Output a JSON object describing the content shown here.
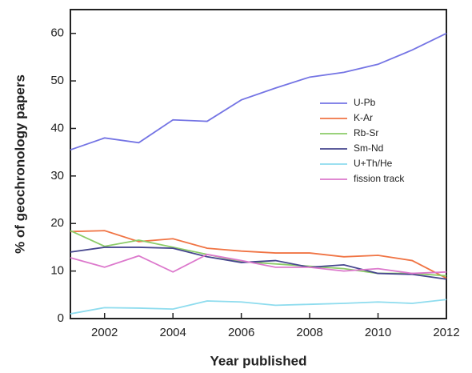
{
  "chart_data": {
    "type": "line",
    "x_label": "Year published",
    "y_label": "% of geochronology papers",
    "x": [
      2001,
      2002,
      2003,
      2004,
      2005,
      2006,
      2007,
      2008,
      2009,
      2010,
      2011,
      2012
    ],
    "xlim": [
      2001,
      2012
    ],
    "xticks": [
      2002,
      2004,
      2006,
      2008,
      2010,
      2012
    ],
    "ylim": [
      0,
      65
    ],
    "yticks": [
      0,
      10,
      20,
      30,
      40,
      50,
      60
    ],
    "grid": false,
    "legend": "upper right",
    "series": [
      {
        "name": "U-Pb",
        "color": "#7474e4",
        "values": [
          35.5,
          38,
          37,
          41.8,
          41.5,
          46,
          48.5,
          50.8,
          51.8,
          53.5,
          56.5,
          60
        ]
      },
      {
        "name": "K-Ar",
        "color": "#f07444",
        "values": [
          18.3,
          18.5,
          16.2,
          16.8,
          14.8,
          14.2,
          13.8,
          13.8,
          13.0,
          13.3,
          12.2,
          8.5
        ]
      },
      {
        "name": "Rb-Sr",
        "color": "#8ccc68",
        "values": [
          18.5,
          15.2,
          16.5,
          15.0,
          13.5,
          12.0,
          11.5,
          11.0,
          10.5,
          9.5,
          9.5,
          9.0
        ]
      },
      {
        "name": "Sm-Nd",
        "color": "#46468e",
        "values": [
          14.0,
          15.0,
          15.0,
          14.8,
          13.0,
          11.8,
          12.2,
          10.8,
          11.3,
          9.5,
          9.3,
          8.3
        ]
      },
      {
        "name": "U+Th/He",
        "color": "#8edcee",
        "values": [
          1.0,
          2.3,
          2.2,
          2.0,
          3.7,
          3.5,
          2.8,
          3.0,
          3.2,
          3.5,
          3.2,
          4.0
        ]
      },
      {
        "name": "fission track",
        "color": "#dc78cc",
        "values": [
          12.8,
          10.8,
          13.2,
          9.8,
          13.5,
          12.2,
          10.8,
          10.8,
          10.0,
          10.5,
          9.5,
          9.8
        ]
      }
    ]
  }
}
